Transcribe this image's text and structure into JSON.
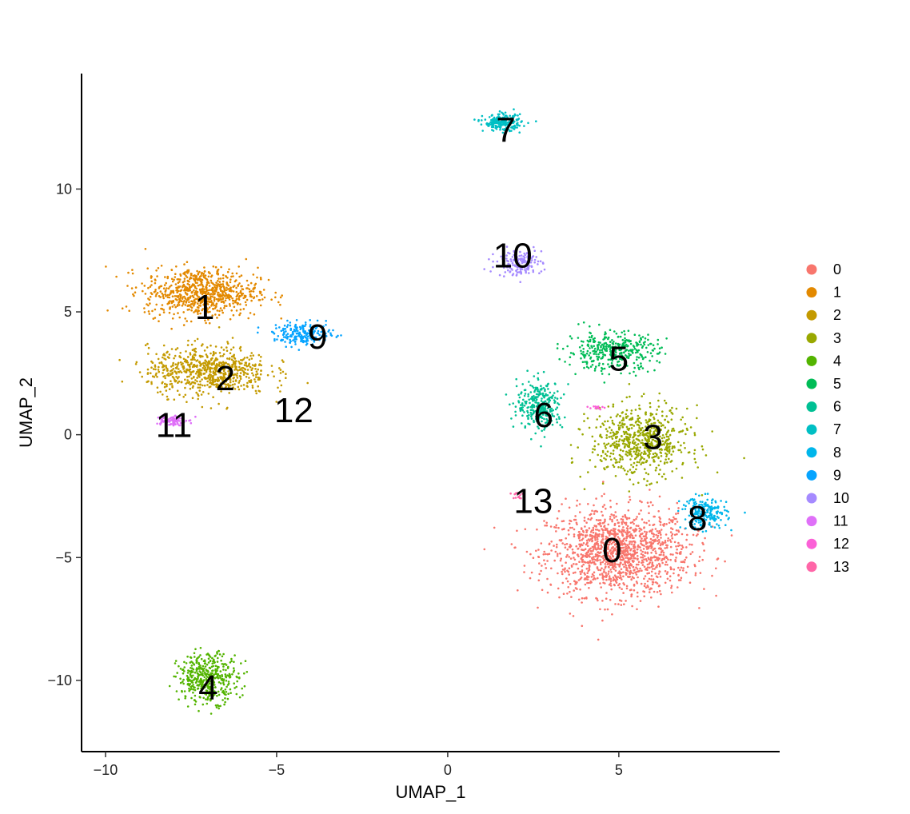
{
  "chart_data": {
    "type": "scatter",
    "title": "",
    "xlabel": "UMAP_1",
    "ylabel": "UMAP_2",
    "xlim": [
      -10.7,
      9.7
    ],
    "ylim": [
      -12.9,
      14.7
    ],
    "xticks": [
      -10,
      -5,
      0,
      5
    ],
    "yticks": [
      -10,
      -5,
      0,
      5,
      10
    ],
    "xtick_labels": [
      "−10",
      "−5",
      "0",
      "5"
    ],
    "ytick_labels": [
      "−10",
      "−5",
      "0",
      "5",
      "10"
    ],
    "grid": false,
    "legend_position": "right",
    "point_style": "small dots",
    "clusters": [
      {
        "name": "0",
        "color": "#F8766D",
        "label": "0",
        "label_pos": [
          4.8,
          -4.7
        ],
        "center": [
          5.0,
          -4.8
        ],
        "spread": [
          1.9,
          1.6
        ],
        "n": 1400
      },
      {
        "name": "1",
        "color": "#E38900",
        "label": "1",
        "label_pos": [
          -7.1,
          5.2
        ],
        "center": [
          -7.2,
          5.8
        ],
        "spread": [
          1.5,
          0.9
        ],
        "n": 750
      },
      {
        "name": "2",
        "color": "#C49A00",
        "label": "2",
        "label_pos": [
          -6.5,
          2.3
        ],
        "center": [
          -7.0,
          2.6
        ],
        "spread": [
          1.6,
          0.9
        ],
        "n": 700
      },
      {
        "name": "3",
        "color": "#99A800",
        "label": "3",
        "label_pos": [
          6.0,
          -0.1
        ],
        "center": [
          5.6,
          -0.3
        ],
        "spread": [
          1.3,
          1.3
        ],
        "n": 650
      },
      {
        "name": "4",
        "color": "#53B400",
        "label": "4",
        "label_pos": [
          -7.0,
          -10.3
        ],
        "center": [
          -7.0,
          -9.9
        ],
        "spread": [
          0.8,
          0.9
        ],
        "n": 420
      },
      {
        "name": "5",
        "color": "#00BC56",
        "label": "5",
        "label_pos": [
          5.0,
          3.1
        ],
        "center": [
          4.8,
          3.4
        ],
        "spread": [
          1.2,
          0.7
        ],
        "n": 380
      },
      {
        "name": "6",
        "color": "#00C094",
        "label": "6",
        "label_pos": [
          2.8,
          0.8
        ],
        "center": [
          2.7,
          1.2
        ],
        "spread": [
          0.6,
          0.9
        ],
        "n": 300
      },
      {
        "name": "7",
        "color": "#00BFC4",
        "label": "7",
        "label_pos": [
          1.7,
          12.4
        ],
        "center": [
          1.6,
          12.7
        ],
        "spread": [
          0.5,
          0.3
        ],
        "n": 220
      },
      {
        "name": "8",
        "color": "#00B6EB",
        "label": "8",
        "label_pos": [
          7.3,
          -3.4
        ],
        "center": [
          7.5,
          -3.2
        ],
        "spread": [
          0.6,
          0.6
        ],
        "n": 220
      },
      {
        "name": "9",
        "color": "#06A4FF",
        "label": "9",
        "label_pos": [
          -3.8,
          4.0
        ],
        "center": [
          -4.2,
          4.1
        ],
        "spread": [
          0.8,
          0.4
        ],
        "n": 220
      },
      {
        "name": "10",
        "color": "#A58AFF",
        "label": "10",
        "label_pos": [
          1.9,
          7.3
        ],
        "center": [
          2.1,
          7.0
        ],
        "spread": [
          0.6,
          0.5
        ],
        "n": 150
      },
      {
        "name": "11",
        "color": "#DF70F8",
        "label": "11",
        "label_pos": [
          -8.0,
          0.4
        ],
        "center": [
          -8.1,
          0.6
        ],
        "spread": [
          0.4,
          0.2
        ],
        "n": 90
      },
      {
        "name": "12",
        "color": "#FB61D7",
        "label": "12",
        "label_pos": [
          -4.5,
          1.0
        ],
        "center": [
          4.3,
          1.1
        ],
        "spread": [
          0.2,
          0.1
        ],
        "n": 14
      },
      {
        "name": "13",
        "color": "#FF66A8",
        "label": "13",
        "label_pos": [
          2.5,
          -2.7
        ],
        "center": [
          2.0,
          -2.5
        ],
        "spread": [
          0.2,
          0.2
        ],
        "n": 14
      }
    ]
  }
}
